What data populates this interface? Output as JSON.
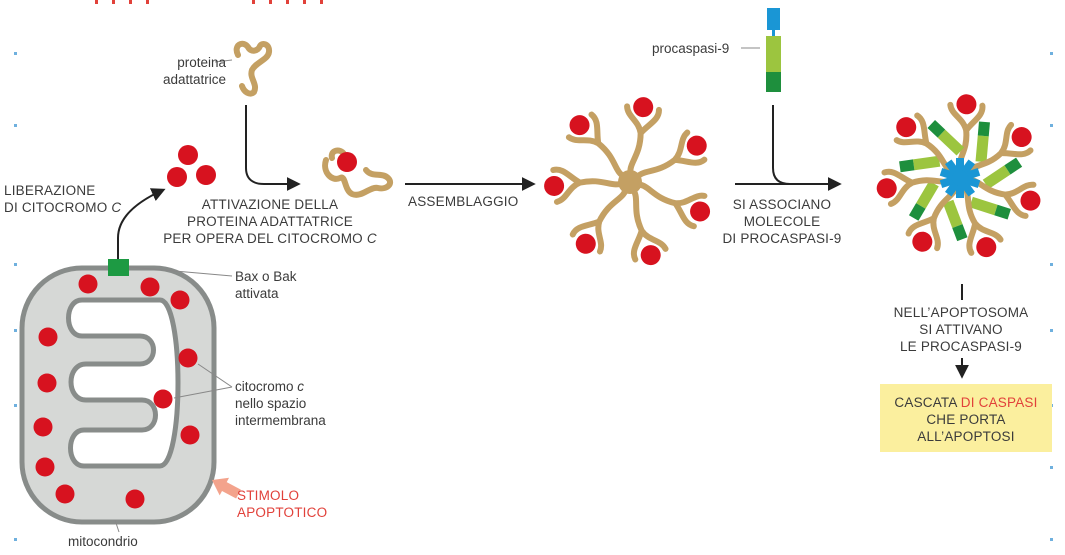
{
  "labels": {
    "liberazione_l1": "LIBERAZIONE",
    "liberazione_l2": "DI CITOCROMO ",
    "liberazione_c": "C",
    "proteina_l1": "proteina",
    "proteina_l2": "adattatrice",
    "attivazione_l1": "ATTIVAZIONE DELLA",
    "attivazione_l2": "PROTEINA ADATTATRICE",
    "attivazione_l3": "PER OPERA DEL CITOCROMO ",
    "attivazione_c": "C",
    "assemblaggio": "ASSEMBLAGGIO",
    "procaspasi": "procaspasi-9",
    "associano_l1": "SI ASSOCIANO",
    "associano_l2": "MOLECOLE",
    "associano_l3": "DI PROCASPASI-9",
    "apoptosoma_l1": "NELL’APOPTOSOMA",
    "apoptosoma_l2": "SI ATTIVANO",
    "apoptosoma_l3": "LE PROCASPASI-9",
    "cascata_a": "CASCATA ",
    "cascata_di": "DI ",
    "cascata_caspasi": "CASPASI",
    "cascata_l2": "CHE PORTA",
    "cascata_l3": "ALL’APOPTOSI",
    "bax_l1": "Bax o Bak",
    "bax_l2": "attivata",
    "citocromo_l1a": "citocromo ",
    "citocromo_l1c": "c",
    "citocromo_l2": "nello spazio",
    "citocromo_l3": "intermembrana",
    "stimolo_l1": "STIMOLO",
    "stimolo_l2": "APOPTOTICO",
    "mitocondrio": "mitocondrio"
  },
  "colors": {
    "cytochrome": "#d7121f",
    "adapter_protein": "#c4a063",
    "membrane": "#888c8a",
    "matrix": "#d6d8d6",
    "bax": "#1d9a43",
    "procaspase_blue": "#1a96d5",
    "procaspase_light_green": "#9cc53f",
    "procaspase_dark_green": "#1e8f3d",
    "stimulus_arrow": "#f3a38c",
    "stimulus_text": "#e1413a",
    "cascade_box": "#fbef9e",
    "arrow": "#222222"
  }
}
